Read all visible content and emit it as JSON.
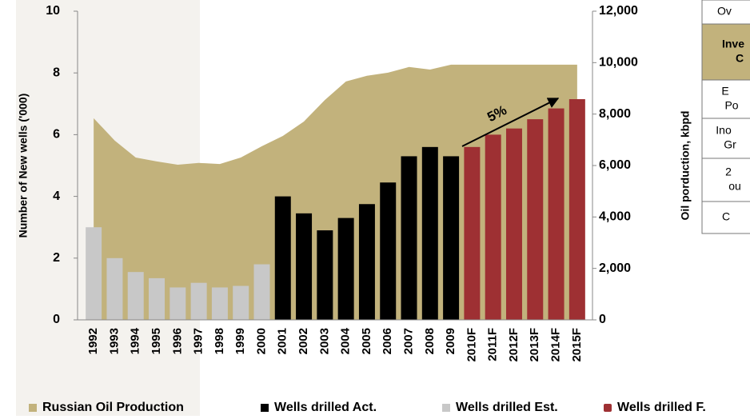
{
  "chart_data": {
    "type": "bar",
    "annotation": "5%",
    "ylabel": "Number of  New wells ('000)",
    "y2label": "Oil porduction, kbpd",
    "categories": [
      "1992",
      "1993",
      "1994",
      "1995",
      "1996",
      "1997",
      "1998",
      "1999",
      "2000",
      "2001",
      "2002",
      "2003",
      "2004",
      "2005",
      "2006",
      "2007",
      "2008",
      "2009",
      "2010F",
      "2011F",
      "2012F",
      "2013F",
      "2014F",
      "2015F"
    ],
    "ylim": [
      0,
      10
    ],
    "yticks": [
      0,
      2,
      4,
      6,
      8,
      10
    ],
    "y2lim": [
      0,
      12000
    ],
    "y2ticks": [
      0,
      {
        "value": 2000,
        "label": "2,000"
      },
      {
        "value": 4000,
        "label": "4,000"
      },
      {
        "value": 6000,
        "label": "6,000"
      },
      {
        "value": 8000,
        "label": "8,000"
      },
      {
        "value": 10000,
        "label": "10,000"
      },
      {
        "value": 12000,
        "label": "12,000"
      }
    ],
    "series": [
      {
        "name": "Russian Oil Production",
        "type": "area",
        "axis": "y2",
        "color": "#c2b27c",
        "values": [
          7840,
          6970,
          6310,
          6160,
          6030,
          6100,
          6060,
          6310,
          6750,
          7150,
          7710,
          8550,
          9270,
          9490,
          9610,
          9830,
          9730,
          9920,
          9920,
          9920,
          9920,
          9920,
          9920,
          9920
        ]
      },
      {
        "name": "Wells drilled Act.",
        "color": "#000000",
        "values": [
          null,
          null,
          null,
          null,
          null,
          null,
          null,
          null,
          null,
          4.0,
          3.45,
          2.9,
          3.3,
          3.75,
          4.45,
          5.3,
          5.6,
          5.3,
          null,
          null,
          null,
          null,
          null,
          null
        ]
      },
      {
        "name": "Wells drilled Est.",
        "color": "#c8c8c8",
        "values": [
          3.0,
          2.0,
          1.55,
          1.35,
          1.05,
          1.2,
          1.05,
          1.1,
          1.8,
          null,
          null,
          null,
          null,
          null,
          null,
          null,
          null,
          null,
          null,
          null,
          null,
          null,
          null,
          null
        ]
      },
      {
        "name": "Wells drilled F.",
        "color": "#9e3033",
        "values": [
          null,
          null,
          null,
          null,
          null,
          null,
          null,
          null,
          null,
          null,
          null,
          null,
          null,
          null,
          null,
          null,
          null,
          null,
          5.6,
          6.0,
          6.2,
          6.5,
          6.85,
          7.15
        ]
      }
    ]
  },
  "table": {
    "rows": [
      [
        "Ov"
      ],
      [
        "Inve",
        "C"
      ],
      [
        "E",
        "Po"
      ],
      [
        "Ino",
        "Gr"
      ],
      [
        "2",
        "ou"
      ],
      [
        "C"
      ]
    ]
  }
}
